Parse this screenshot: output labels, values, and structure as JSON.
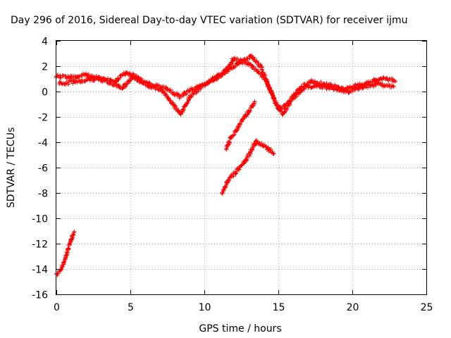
{
  "chart_data": {
    "type": "scatter",
    "title": "Day 296 of 2016, Sidereal Day-to-day VTEC variation (SDTVAR) for receiver ijmu",
    "xlabel": "GPS time / hours",
    "ylabel": "SDTVAR / TECUs",
    "xlim": [
      0,
      25
    ],
    "ylim": [
      -16,
      4
    ],
    "xticks": [
      0,
      5,
      10,
      15,
      20,
      25
    ],
    "xtick_labels": [
      "0",
      "5",
      "10",
      "15",
      "20",
      "25"
    ],
    "yticks": [
      -16,
      -14,
      -12,
      -10,
      -8,
      -6,
      -4,
      -2,
      0,
      2,
      4
    ],
    "ytick_labels": [
      "-16",
      "-14",
      "-12",
      "-10",
      "-8",
      "-6",
      "-4",
      "-2",
      "0",
      "2",
      "4"
    ],
    "grid": true,
    "marker": "plus",
    "color": "#ff0000",
    "series": [
      {
        "name": "arc-main-upper",
        "points": [
          [
            0,
            1.2
          ],
          [
            1,
            1.1
          ],
          [
            2,
            1.3
          ],
          [
            3,
            1.0
          ],
          [
            4,
            0.8
          ],
          [
            4.7,
            1.5
          ],
          [
            5.5,
            0.9
          ],
          [
            6.5,
            0.5
          ],
          [
            7.5,
            0.2
          ],
          [
            8.3,
            -0.4
          ],
          [
            9.2,
            0.2
          ],
          [
            10.3,
            0.7
          ],
          [
            11.2,
            1.3
          ],
          [
            12.2,
            2.2
          ],
          [
            13.2,
            2.8
          ],
          [
            13.8,
            2.0
          ],
          [
            14.4,
            0.3
          ],
          [
            15.0,
            -1.4
          ],
          [
            15.6,
            -1.0
          ],
          [
            16.4,
            0.2
          ],
          [
            17.2,
            0.8
          ],
          [
            18.4,
            0.5
          ],
          [
            19.5,
            0.2
          ],
          [
            20.5,
            0.5
          ],
          [
            21.5,
            0.9
          ],
          [
            22.3,
            1.0
          ],
          [
            22.9,
            0.8
          ]
        ]
      },
      {
        "name": "arc-main-lower",
        "points": [
          [
            0.2,
            0.6
          ],
          [
            1.2,
            0.8
          ],
          [
            2.3,
            1.0
          ],
          [
            3.2,
            0.9
          ],
          [
            4.5,
            0.3
          ],
          [
            5.2,
            1.3
          ],
          [
            6.2,
            0.5
          ],
          [
            7.2,
            0.0
          ],
          [
            7.9,
            -1.0
          ],
          [
            8.4,
            -1.8
          ],
          [
            9.0,
            -0.5
          ],
          [
            9.6,
            0.2
          ],
          [
            10.6,
            1.0
          ],
          [
            11.4,
            1.6
          ],
          [
            12.0,
            2.6
          ],
          [
            13.0,
            2.2
          ],
          [
            13.6,
            1.6
          ],
          [
            14.2,
            0.8
          ],
          [
            14.7,
            -0.6
          ],
          [
            15.3,
            -1.8
          ],
          [
            16.0,
            -0.5
          ],
          [
            16.8,
            0.4
          ],
          [
            17.8,
            0.4
          ],
          [
            19.0,
            0.2
          ],
          [
            19.8,
            0.0
          ],
          [
            20.8,
            0.4
          ],
          [
            21.8,
            0.6
          ],
          [
            22.8,
            0.4
          ]
        ]
      },
      {
        "name": "arc-mid-upper",
        "points": [
          [
            11.5,
            -4.5
          ],
          [
            11.8,
            -3.6
          ],
          [
            12.2,
            -3.0
          ],
          [
            12.6,
            -2.2
          ],
          [
            13.0,
            -1.6
          ],
          [
            13.4,
            -0.8
          ]
        ]
      },
      {
        "name": "arc-mid-lower",
        "points": [
          [
            11.2,
            -8.0
          ],
          [
            11.6,
            -7.0
          ],
          [
            12.1,
            -6.4
          ],
          [
            12.7,
            -5.6
          ],
          [
            13.1,
            -4.8
          ],
          [
            13.5,
            -3.9
          ],
          [
            13.9,
            -4.2
          ],
          [
            14.3,
            -4.5
          ],
          [
            14.7,
            -4.9
          ]
        ]
      },
      {
        "name": "arc-early",
        "points": [
          [
            0.0,
            -14.4
          ],
          [
            0.3,
            -14.1
          ],
          [
            0.6,
            -13.2
          ],
          [
            0.9,
            -12.0
          ],
          [
            1.2,
            -11.1
          ]
        ]
      }
    ]
  }
}
